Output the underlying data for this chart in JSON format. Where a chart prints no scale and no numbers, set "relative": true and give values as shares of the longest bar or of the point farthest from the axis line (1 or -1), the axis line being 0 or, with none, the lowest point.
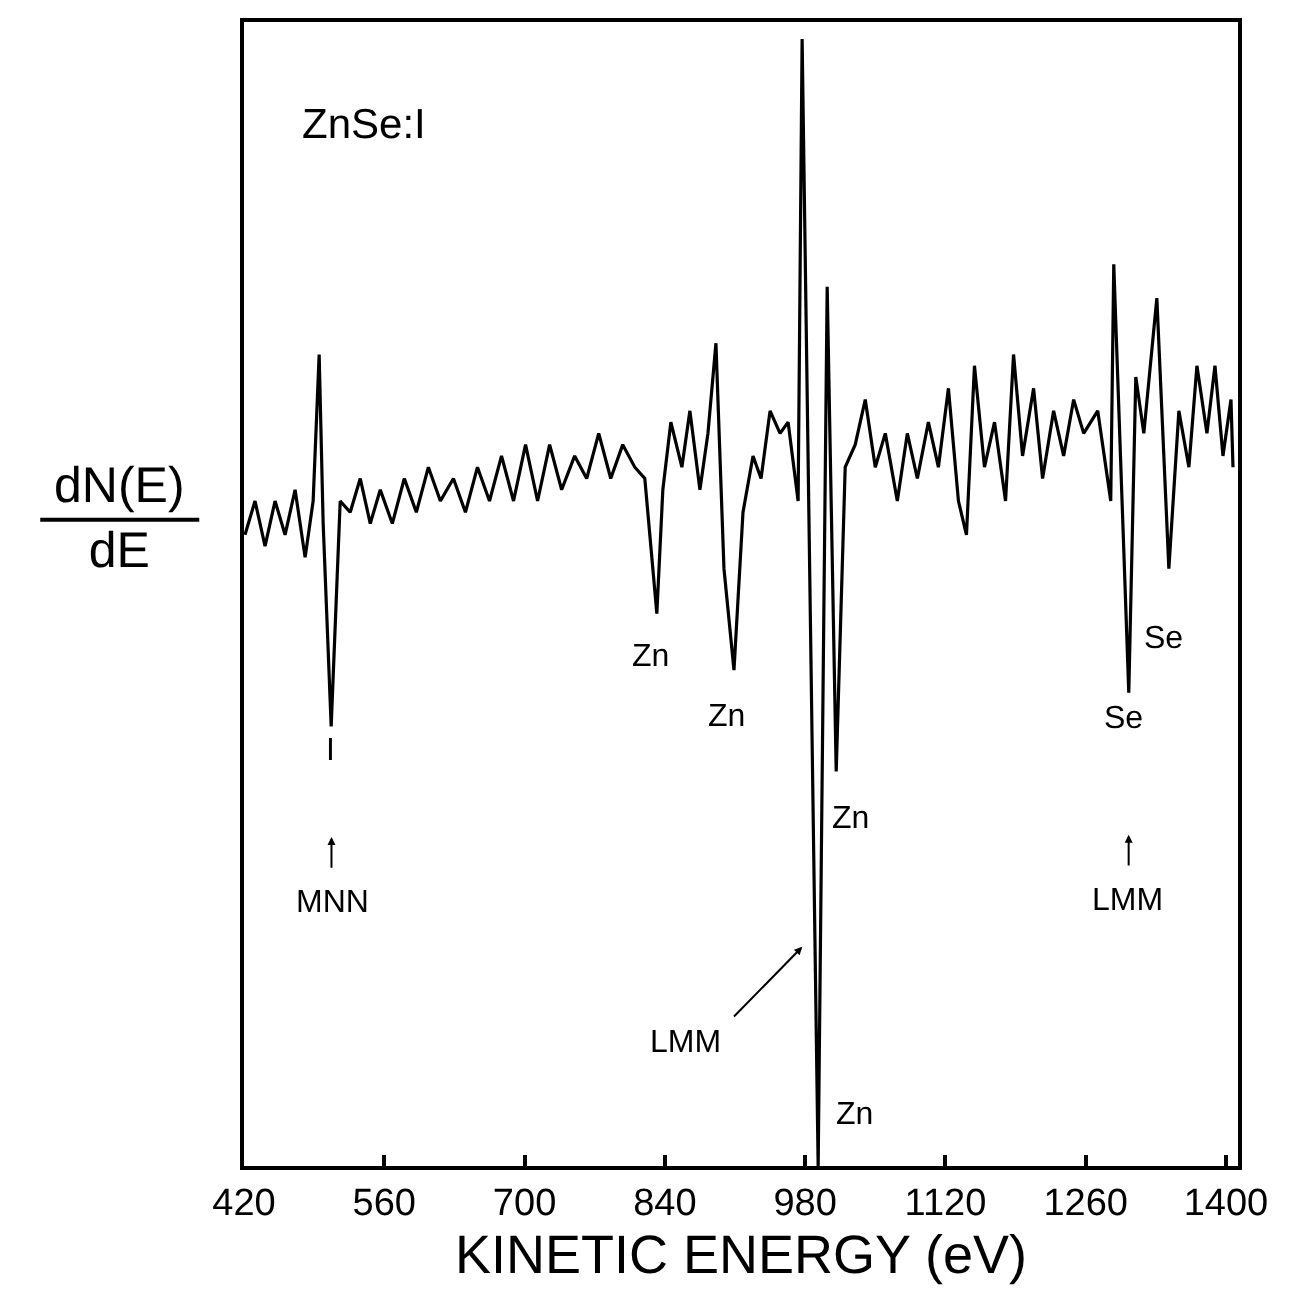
{
  "chart_data": {
    "type": "line",
    "relative": true,
    "xlabel": "KINETIC ENERGY (eV)",
    "ylabel": "dN(E)\ndE",
    "xlim": [
      420,
      1412
    ],
    "xticks": [
      420,
      560,
      700,
      840,
      980,
      1120,
      1260,
      1400
    ],
    "x": [
      421,
      431,
      441,
      451,
      461,
      471,
      481,
      489,
      495,
      499,
      507,
      516,
      526,
      536,
      546,
      556,
      568,
      580,
      592,
      604,
      616,
      629,
      641,
      653,
      665,
      677,
      689,
      701,
      713,
      725,
      737,
      750,
      762,
      774,
      786,
      798,
      810,
      820,
      832,
      838,
      846,
      857,
      865,
      875,
      883,
      891,
      899,
      909,
      918,
      928,
      936,
      945,
      955,
      963,
      973,
      977,
      993,
      1002,
      1011,
      1020,
      1030,
      1040,
      1050,
      1060,
      1072,
      1082,
      1092,
      1103,
      1113,
      1123,
      1133,
      1141,
      1149,
      1159,
      1169,
      1180,
      1188,
      1197,
      1208,
      1217,
      1228,
      1238,
      1248,
      1258,
      1272,
      1285,
      1288,
      1303,
      1310,
      1318,
      1331,
      1343,
      1353,
      1363,
      1371,
      1381,
      1389,
      1397,
      1405,
      1407
    ],
    "series": [
      {
        "color": "#000000",
        "values": [
          0.56,
          0.59,
          0.55,
          0.59,
          0.56,
          0.6,
          0.54,
          0.59,
          0.72,
          0.57,
          0.39,
          0.59,
          0.58,
          0.61,
          0.57,
          0.6,
          0.57,
          0.61,
          0.58,
          0.62,
          0.59,
          0.61,
          0.58,
          0.62,
          0.59,
          0.63,
          0.59,
          0.64,
          0.59,
          0.64,
          0.6,
          0.63,
          0.61,
          0.65,
          0.61,
          0.64,
          0.62,
          0.61,
          0.49,
          0.6,
          0.66,
          0.62,
          0.67,
          0.6,
          0.65,
          0.73,
          0.53,
          0.44,
          0.58,
          0.63,
          0.61,
          0.67,
          0.65,
          0.66,
          0.59,
          1.0,
          0.0,
          0.78,
          0.35,
          0.62,
          0.64,
          0.68,
          0.62,
          0.65,
          0.59,
          0.65,
          0.61,
          0.66,
          0.62,
          0.69,
          0.59,
          0.56,
          0.71,
          0.62,
          0.66,
          0.59,
          0.72,
          0.63,
          0.69,
          0.61,
          0.67,
          0.63,
          0.68,
          0.65,
          0.67,
          0.59,
          0.8,
          0.42,
          0.7,
          0.65,
          0.77,
          0.53,
          0.67,
          0.62,
          0.71,
          0.65,
          0.71,
          0.63,
          0.68,
          0.62
        ]
      }
    ],
    "annotations": [
      "ZnSe:I",
      "I",
      "MNN",
      "Zn",
      "Zn",
      "Zn",
      "LMM",
      "Zn",
      "Se",
      "Se",
      "LMM"
    ],
    "marker": "none",
    "line_style": "solid"
  }
}
